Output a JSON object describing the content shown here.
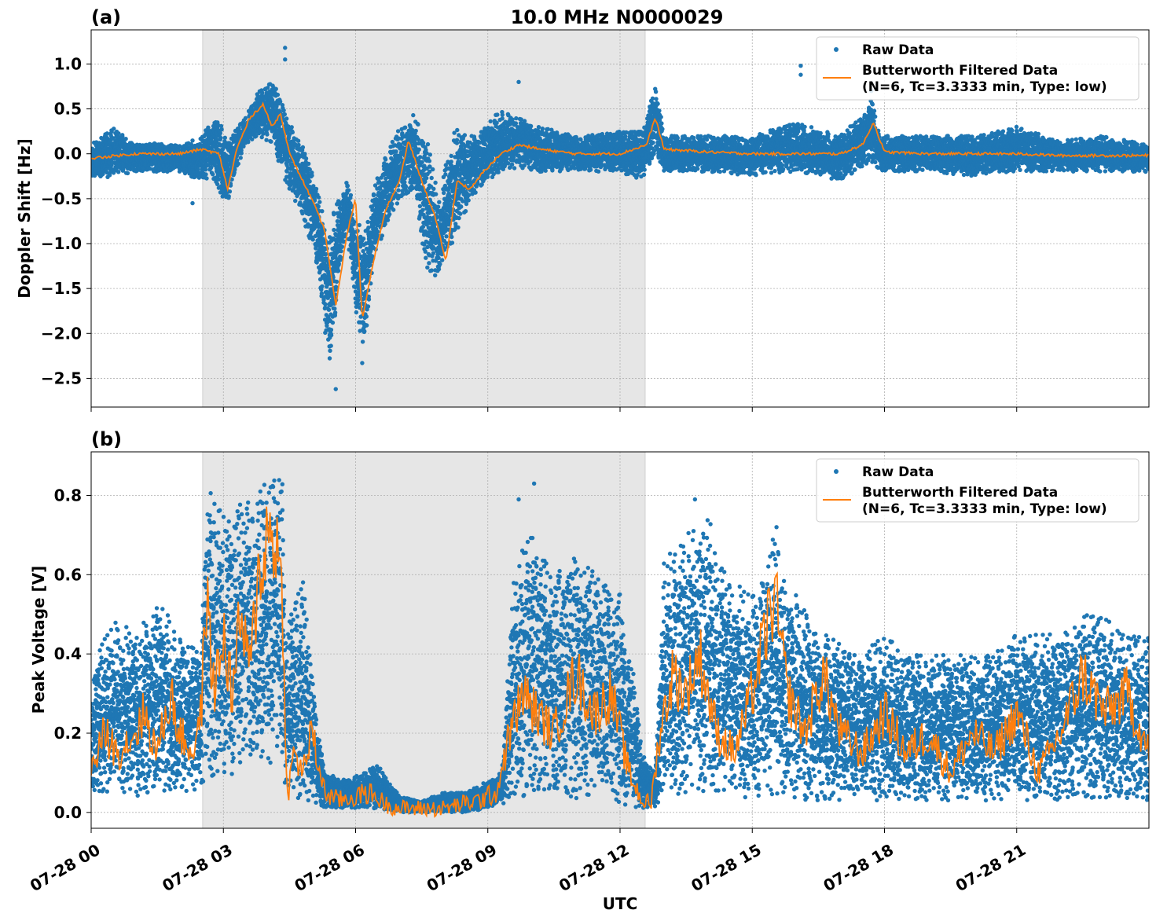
{
  "figure": {
    "title": "10.0 MHz N0000029",
    "xlabel": "UTC",
    "colors": {
      "raw": "#1f77b4",
      "filtered": "#ff7f0e",
      "shade": "#e6e6e6",
      "grid": "#b0b0b0"
    }
  },
  "chart_data": [
    {
      "panel": "(a)",
      "type": "scatter",
      "ylabel": "Doppler Shift [Hz]",
      "xlim_hours": [
        0,
        24
      ],
      "ylim": [
        -2.82,
        1.38
      ],
      "yticks": [
        1.0,
        0.5,
        0.0,
        -0.5,
        -1.0,
        -1.5,
        -2.0,
        -2.5
      ],
      "ytick_labels": [
        "1.0",
        "0.5",
        "0.0",
        "−0.5",
        "−1.0",
        "−1.5",
        "−2.0",
        "−2.5"
      ],
      "shaded_hours": [
        2.53,
        12.57
      ],
      "grid": true,
      "legend_position": "top-right",
      "legend": [
        {
          "label": "Raw Data",
          "marker": "dot"
        },
        {
          "label": "Butterworth Filtered Data",
          "label2": "(N=6, Tc=3.3333 min, Type: low)",
          "marker": "line"
        }
      ],
      "series": [
        {
          "name": "Raw Data",
          "envelope": {
            "hours": [
              0,
              0.5,
              1,
              1.5,
              2,
              2.5,
              2.8,
              3.1,
              3.3,
              3.5,
              3.8,
              4.1,
              4.4,
              4.7,
              5.0,
              5.2,
              5.4,
              5.6,
              5.8,
              6.0,
              6.2,
              6.4,
              6.7,
              7.0,
              7.3,
              7.6,
              7.9,
              8.1,
              8.3,
              8.6,
              9.0,
              9.3,
              9.7,
              10.2,
              11.0,
              12.0,
              12.5,
              12.8,
              13.0,
              14,
              15,
              16,
              17,
              17.5,
              17.7,
              17.9,
              19,
              20,
              21,
              22,
              23,
              24
            ],
            "upper": [
              0.1,
              0.3,
              0.1,
              0.12,
              0.1,
              0.2,
              0.45,
              0.2,
              0.3,
              0.4,
              0.7,
              0.85,
              0.5,
              0.2,
              -0.1,
              -0.5,
              -0.8,
              -0.5,
              -0.3,
              -0.6,
              -0.9,
              -0.4,
              0.0,
              0.3,
              0.45,
              0.2,
              -0.5,
              0.1,
              0.3,
              0.2,
              0.35,
              0.5,
              0.4,
              0.3,
              0.2,
              0.25,
              0.25,
              0.8,
              0.2,
              0.2,
              0.2,
              0.35,
              0.2,
              0.45,
              0.65,
              0.2,
              0.2,
              0.2,
              0.3,
              0.15,
              0.2,
              0.1
            ],
            "lower": [
              -0.3,
              -0.25,
              -0.2,
              -0.2,
              -0.2,
              -0.3,
              -0.3,
              -0.6,
              -0.2,
              0.1,
              0.2,
              0.1,
              -0.3,
              -0.6,
              -1.0,
              -1.5,
              -2.5,
              -1.5,
              -0.8,
              -1.8,
              -2.2,
              -1.2,
              -0.8,
              -0.5,
              -0.4,
              -1.3,
              -1.4,
              -1.1,
              -0.9,
              -0.5,
              -0.3,
              -0.2,
              -0.15,
              -0.2,
              -0.2,
              -0.2,
              -0.3,
              0.0,
              -0.2,
              -0.2,
              -0.25,
              -0.2,
              -0.3,
              -0.15,
              -0.1,
              -0.2,
              -0.2,
              -0.25,
              -0.2,
              -0.2,
              -0.2,
              -0.2
            ]
          },
          "outliers": [
            {
              "x": 4.4,
              "y": 1.18
            },
            {
              "x": 4.4,
              "y": 1.05
            },
            {
              "x": 9.7,
              "y": 0.8
            },
            {
              "x": 16.1,
              "y": 0.98
            },
            {
              "x": 16.1,
              "y": 0.88
            },
            {
              "x": 17.7,
              "y": 0.7
            },
            {
              "x": 2.3,
              "y": -0.55
            },
            {
              "x": 5.55,
              "y": -2.62
            },
            {
              "x": 6.15,
              "y": -2.33
            }
          ]
        },
        {
          "name": "Butterworth Filtered Data",
          "hours": [
            0,
            1,
            2,
            2.5,
            2.9,
            3.1,
            3.3,
            3.6,
            3.9,
            4.1,
            4.3,
            4.5,
            4.7,
            5.0,
            5.3,
            5.55,
            5.8,
            6.0,
            6.15,
            6.4,
            6.7,
            7.0,
            7.2,
            7.5,
            7.8,
            8.05,
            8.3,
            8.6,
            8.9,
            9.3,
            9.7,
            10.2,
            11.0,
            12.0,
            12.6,
            12.8,
            13.0,
            14,
            15,
            16,
            17,
            17.5,
            17.75,
            18,
            19,
            20,
            21,
            22,
            23,
            24
          ],
          "values": [
            -0.05,
            0.0,
            0.0,
            0.05,
            0.0,
            -0.4,
            0.05,
            0.4,
            0.55,
            0.3,
            0.45,
            0.0,
            -0.2,
            -0.5,
            -0.85,
            -1.7,
            -0.9,
            -0.5,
            -1.85,
            -1.2,
            -0.6,
            -0.3,
            0.15,
            -0.3,
            -0.7,
            -1.2,
            -0.3,
            -0.4,
            -0.2,
            0.0,
            0.1,
            0.05,
            0.0,
            0.0,
            0.1,
            0.4,
            0.05,
            0.02,
            0.0,
            0.0,
            0.0,
            0.1,
            0.35,
            0.02,
            0.0,
            0.0,
            0.0,
            -0.02,
            -0.02,
            -0.02
          ]
        }
      ]
    },
    {
      "panel": "(b)",
      "type": "scatter",
      "ylabel": "Peak Voltage [V]",
      "xlim_hours": [
        0,
        24
      ],
      "ylim": [
        -0.04,
        0.91
      ],
      "yticks": [
        0.8,
        0.6,
        0.4,
        0.2,
        0.0
      ],
      "ytick_labels": [
        "0.8",
        "0.6",
        "0.4",
        "0.2",
        "0.0"
      ],
      "shaded_hours": [
        2.53,
        12.57
      ],
      "grid": true,
      "legend_position": "top-right",
      "legend": [
        {
          "label": "Raw Data",
          "marker": "dot"
        },
        {
          "label": "Butterworth Filtered Data",
          "label2": "(N=6, Tc=3.3333 min, Type: low)",
          "marker": "line"
        }
      ],
      "series": [
        {
          "name": "Raw Data",
          "envelope": {
            "hours": [
              0,
              0.5,
              1,
              1.5,
              2,
              2.5,
              2.6,
              3.0,
              3.5,
              4.0,
              4.35,
              4.4,
              4.8,
              5.0,
              5.3,
              5.8,
              6.5,
              7.0,
              7.5,
              8.0,
              8.5,
              9.0,
              9.3,
              9.6,
              10,
              10.5,
              11,
              11.5,
              12,
              12.3,
              12.5,
              12.8,
              13.0,
              13.5,
              14,
              14.5,
              15,
              15.5,
              16,
              16.5,
              17,
              17.5,
              18,
              18.5,
              19,
              19.5,
              20,
              20.5,
              21,
              21.5,
              22,
              22.5,
              23,
              23.5,
              24
            ],
            "upper": [
              0.35,
              0.5,
              0.45,
              0.55,
              0.45,
              0.4,
              0.85,
              0.75,
              0.8,
              0.85,
              0.86,
              0.45,
              0.6,
              0.35,
              0.1,
              0.08,
              0.12,
              0.04,
              0.03,
              0.05,
              0.05,
              0.08,
              0.1,
              0.6,
              0.75,
              0.6,
              0.65,
              0.6,
              0.55,
              0.35,
              0.15,
              0.1,
              0.65,
              0.7,
              0.75,
              0.6,
              0.55,
              0.7,
              0.55,
              0.45,
              0.45,
              0.4,
              0.45,
              0.4,
              0.4,
              0.4,
              0.4,
              0.4,
              0.45,
              0.45,
              0.45,
              0.5,
              0.5,
              0.45,
              0.45
            ],
            "lower": [
              0.04,
              0.05,
              0.04,
              0.05,
              0.05,
              0.06,
              0.1,
              0.08,
              0.1,
              0.12,
              0.12,
              0.05,
              0.03,
              0.02,
              0.01,
              0.01,
              0.01,
              0.0,
              0.0,
              0.0,
              0.0,
              0.01,
              0.02,
              0.03,
              0.04,
              0.04,
              0.03,
              0.04,
              0.02,
              0.01,
              0.01,
              0.01,
              0.03,
              0.04,
              0.05,
              0.04,
              0.03,
              0.04,
              0.03,
              0.03,
              0.03,
              0.03,
              0.03,
              0.03,
              0.03,
              0.03,
              0.03,
              0.03,
              0.03,
              0.03,
              0.03,
              0.03,
              0.03,
              0.03,
              0.03
            ]
          },
          "outliers": [
            {
              "x": 10.05,
              "y": 0.83
            },
            {
              "x": 13.7,
              "y": 0.79
            },
            {
              "x": 15.55,
              "y": 0.72
            },
            {
              "x": 9.7,
              "y": 0.79
            }
          ]
        },
        {
          "name": "Butterworth Filtered Data",
          "hours": [
            0,
            0.3,
            0.6,
            1,
            1.2,
            1.5,
            1.8,
            2.0,
            2.3,
            2.5,
            2.6,
            2.8,
            3.0,
            3.2,
            3.4,
            3.6,
            3.8,
            4.0,
            4.2,
            4.35,
            4.45,
            4.6,
            4.8,
            5.0,
            5.3,
            5.6,
            6.0,
            6.3,
            6.7,
            7.0,
            7.3,
            7.6,
            8.0,
            8.4,
            8.8,
            9.2,
            9.5,
            9.8,
            10.1,
            10.5,
            11.0,
            11.4,
            11.8,
            12.2,
            12.5,
            12.7,
            12.9,
            13.2,
            13.5,
            13.8,
            14.2,
            14.6,
            15.0,
            15.5,
            15.8,
            16.2,
            16.6,
            17.0,
            17.5,
            18.0,
            18.5,
            19.0,
            19.5,
            20.0,
            20.5,
            21.0,
            21.5,
            22.0,
            22.5,
            23.0,
            23.5,
            24.0
          ],
          "values": [
            0.1,
            0.2,
            0.15,
            0.2,
            0.25,
            0.15,
            0.3,
            0.2,
            0.15,
            0.25,
            0.55,
            0.3,
            0.45,
            0.3,
            0.5,
            0.35,
            0.6,
            0.7,
            0.7,
            0.5,
            0.03,
            0.15,
            0.1,
            0.2,
            0.05,
            0.03,
            0.04,
            0.05,
            0.02,
            0.01,
            0.01,
            0.01,
            0.01,
            0.02,
            0.03,
            0.05,
            0.2,
            0.3,
            0.25,
            0.2,
            0.35,
            0.25,
            0.3,
            0.1,
            0.03,
            0.02,
            0.2,
            0.35,
            0.3,
            0.4,
            0.2,
            0.15,
            0.3,
            0.55,
            0.3,
            0.2,
            0.35,
            0.2,
            0.15,
            0.25,
            0.15,
            0.2,
            0.1,
            0.2,
            0.15,
            0.25,
            0.1,
            0.2,
            0.35,
            0.25,
            0.3,
            0.15
          ]
        }
      ]
    }
  ],
  "xaxis": {
    "ticks_hours": [
      0,
      3,
      6,
      9,
      12,
      15,
      18,
      21
    ],
    "tick_labels": [
      "07-28 00",
      "07-28 03",
      "07-28 06",
      "07-28 09",
      "07-28 12",
      "07-28 15",
      "07-28 18",
      "07-28 21"
    ]
  }
}
